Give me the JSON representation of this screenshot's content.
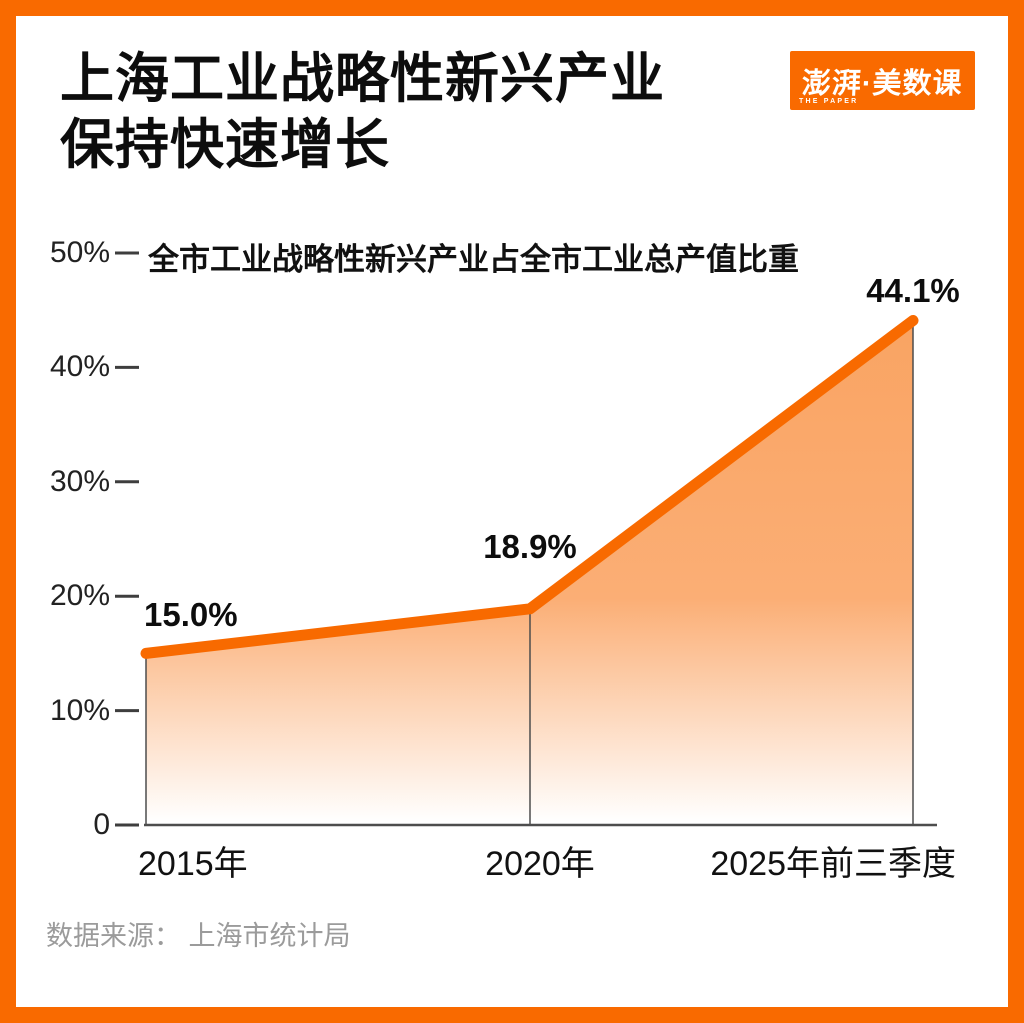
{
  "header": {
    "title_line1": "上海工业战略性新兴产业",
    "title_line2": "保持快速增长",
    "logo": {
      "text": "澎湃·美数课",
      "subtext": "THE PAPER",
      "bg_color": "#F96A00"
    }
  },
  "chart_data": {
    "type": "area",
    "title": "全市工业战略性新兴产业占全市工业总产值比重",
    "categories": [
      "2015年",
      "2020年",
      "2025年前三季度"
    ],
    "values": [
      15.0,
      18.9,
      44.1
    ],
    "value_labels": [
      "15.0%",
      "18.9%",
      "44.1%"
    ],
    "unit": "%",
    "ylim": [
      0,
      50
    ],
    "ytick_labels": [
      "0",
      "10%",
      "20%",
      "30%",
      "40%",
      "50%"
    ],
    "grid": false,
    "legend": "none",
    "colors": {
      "line": "#F86A00",
      "fill_top": "#F9A463",
      "fill_bottom": "#FFFFFF",
      "axis": "#4d4d4d",
      "frame": "#F96A00"
    }
  },
  "footer": {
    "source": "数据来源： 上海市统计局"
  }
}
